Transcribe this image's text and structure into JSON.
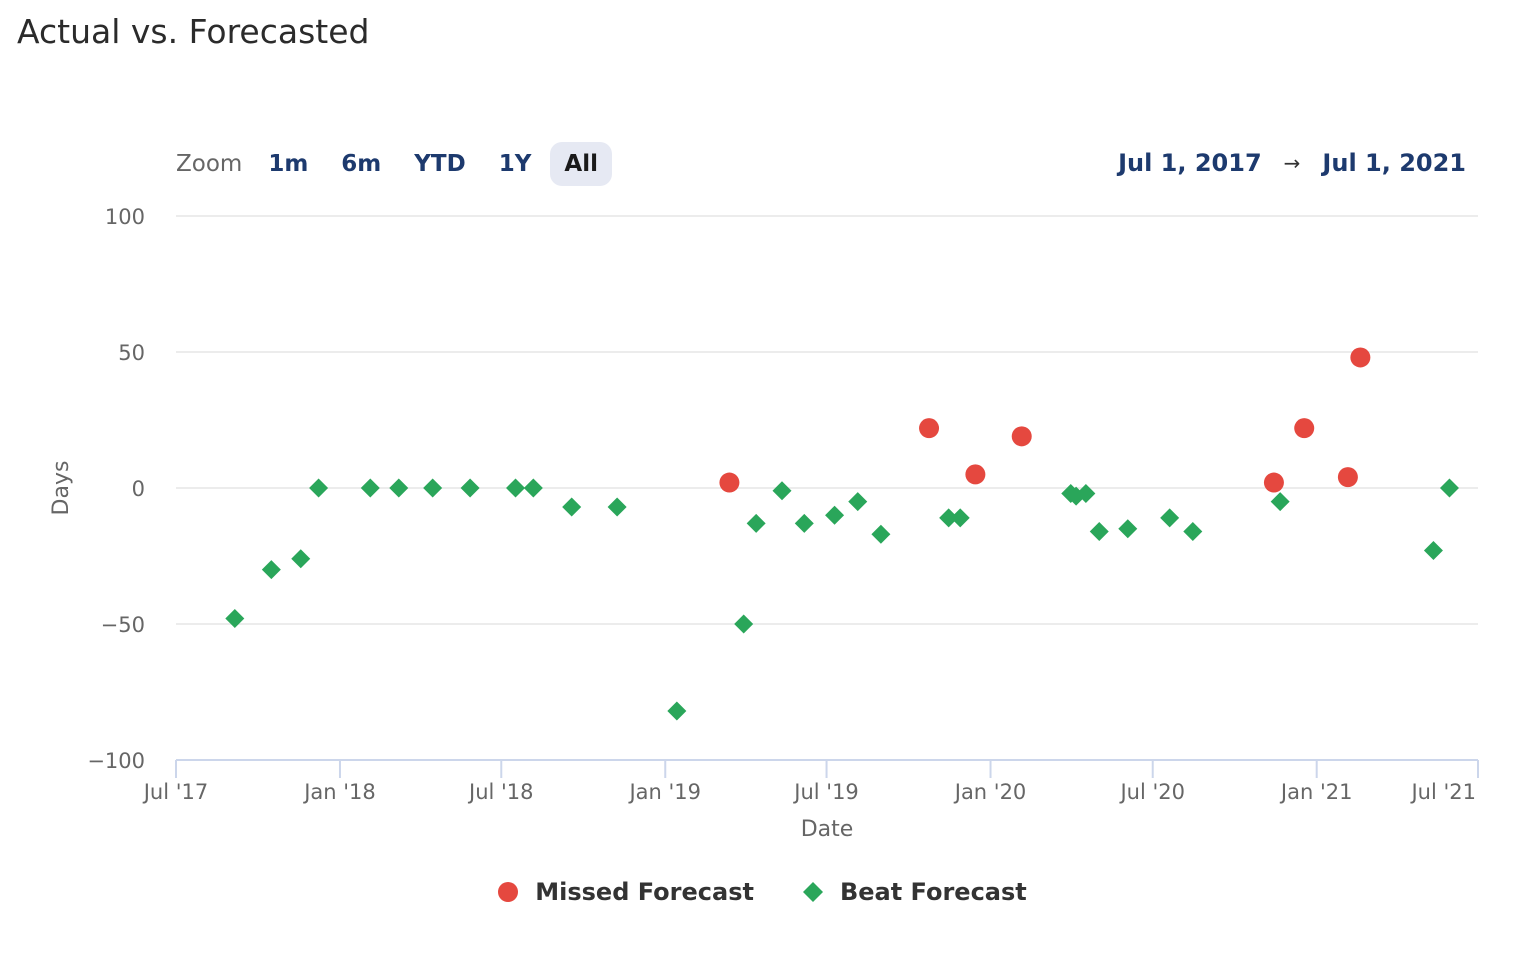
{
  "title": "Actual vs. Forecasted",
  "zoom": {
    "label": "Zoom",
    "buttons": [
      "1m",
      "6m",
      "YTD",
      "1Y",
      "All"
    ],
    "active": "All"
  },
  "range": {
    "from": "Jul 1, 2017",
    "arrow": "→",
    "to": "Jul 1, 2021"
  },
  "colors": {
    "missed": "#e5483f",
    "beat": "#2aa65a",
    "grid": "#e6e6e6",
    "axis": "#ccd6eb",
    "tick_text": "#666666"
  },
  "chart_data": {
    "type": "scatter",
    "title": "Actual vs. Forecasted",
    "xlabel": "Date",
    "ylabel": "Days",
    "x_type": "date",
    "xlim": [
      "2017-07-01",
      "2021-07-01"
    ],
    "ylim": [
      -100,
      100
    ],
    "y_ticks": [
      100,
      50,
      0,
      -50,
      -100
    ],
    "y_tick_labels": [
      "100",
      "50",
      "0",
      "-50",
      "-100"
    ],
    "x_ticks": [
      "2017-07-01",
      "2018-01-01",
      "2018-07-01",
      "2019-01-01",
      "2019-07-01",
      "2020-01-01",
      "2020-07-01",
      "2021-01-01",
      "2021-07-01"
    ],
    "x_tick_labels": [
      "Jul '17",
      "Jan '18",
      "Jul '18",
      "Jan '19",
      "Jul '19",
      "Jan '20",
      "Jul '20",
      "Jan '21",
      "Jul '21"
    ],
    "grid": true,
    "legend_position": "bottom-center",
    "series": [
      {
        "name": "Missed Forecast",
        "marker": "circle",
        "color": "#e5483f",
        "points": [
          {
            "x": "2019-03-14",
            "y": 2
          },
          {
            "x": "2019-10-24",
            "y": 22
          },
          {
            "x": "2019-12-15",
            "y": 5
          },
          {
            "x": "2020-02-05",
            "y": 19
          },
          {
            "x": "2020-11-14",
            "y": 2
          },
          {
            "x": "2020-12-18",
            "y": 22
          },
          {
            "x": "2021-02-05",
            "y": 4
          },
          {
            "x": "2021-02-19",
            "y": 48
          }
        ]
      },
      {
        "name": "Beat Forecast",
        "marker": "diamond",
        "color": "#2aa65a",
        "points": [
          {
            "x": "2017-09-05",
            "y": -48
          },
          {
            "x": "2017-10-16",
            "y": -30
          },
          {
            "x": "2017-11-18",
            "y": -26
          },
          {
            "x": "2017-12-08",
            "y": 0
          },
          {
            "x": "2018-02-04",
            "y": 0
          },
          {
            "x": "2018-03-08",
            "y": 0
          },
          {
            "x": "2018-04-15",
            "y": 0
          },
          {
            "x": "2018-05-27",
            "y": 0
          },
          {
            "x": "2018-07-17",
            "y": 0
          },
          {
            "x": "2018-08-06",
            "y": 0
          },
          {
            "x": "2018-09-18",
            "y": -7
          },
          {
            "x": "2018-11-08",
            "y": -7
          },
          {
            "x": "2019-01-14",
            "y": -82
          },
          {
            "x": "2019-03-30",
            "y": -50
          },
          {
            "x": "2019-04-13",
            "y": -13
          },
          {
            "x": "2019-05-12",
            "y": -1
          },
          {
            "x": "2019-06-06",
            "y": -13
          },
          {
            "x": "2019-07-10",
            "y": -10
          },
          {
            "x": "2019-08-05",
            "y": -5
          },
          {
            "x": "2019-08-31",
            "y": -17
          },
          {
            "x": "2019-11-15",
            "y": -11
          },
          {
            "x": "2019-11-28",
            "y": -11
          },
          {
            "x": "2020-03-31",
            "y": -2
          },
          {
            "x": "2020-04-06",
            "y": -3
          },
          {
            "x": "2020-04-17",
            "y": -2
          },
          {
            "x": "2020-05-02",
            "y": -16
          },
          {
            "x": "2020-06-03",
            "y": -15
          },
          {
            "x": "2020-07-20",
            "y": -11
          },
          {
            "x": "2020-08-15",
            "y": -16
          },
          {
            "x": "2020-11-21",
            "y": -5
          },
          {
            "x": "2021-05-12",
            "y": -23
          },
          {
            "x": "2021-05-30",
            "y": 0
          }
        ]
      }
    ]
  }
}
